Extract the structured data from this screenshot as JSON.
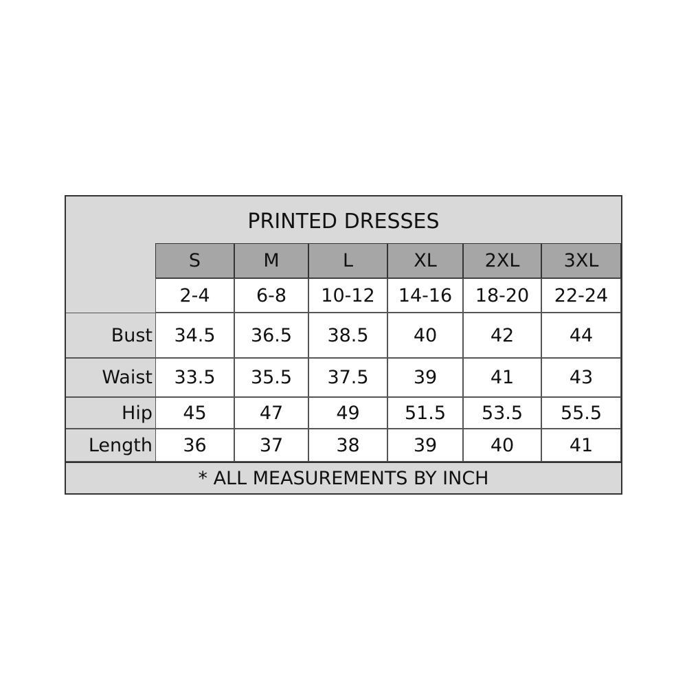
{
  "title": "PRINTED DRESSES",
  "sizes": [
    "S",
    "M",
    "L",
    "XL",
    "2XL",
    "3XL"
  ],
  "us_sizes": [
    "2-4",
    "6-8",
    "10-12",
    "14-16",
    "18-20",
    "22-24"
  ],
  "rows": [
    {
      "label": "Bust",
      "values": [
        "34.5",
        "36.5",
        "38.5",
        "40",
        "42",
        "44"
      ]
    },
    {
      "label": "Waist",
      "values": [
        "33.5",
        "35.5",
        "37.5",
        "39",
        "41",
        "43"
      ]
    },
    {
      "label": "Hip",
      "values": [
        "45",
        "47",
        "49",
        "51.5",
        "53.5",
        "55.5"
      ]
    },
    {
      "label": "Length",
      "values": [
        "36",
        "37",
        "38",
        "39",
        "40",
        "41"
      ]
    }
  ],
  "footnote": "* ALL MEASUREMENTS BY INCH",
  "colors": {
    "panel": "#d9d9d9",
    "header": "#a6a6a6",
    "border": "#333333"
  }
}
